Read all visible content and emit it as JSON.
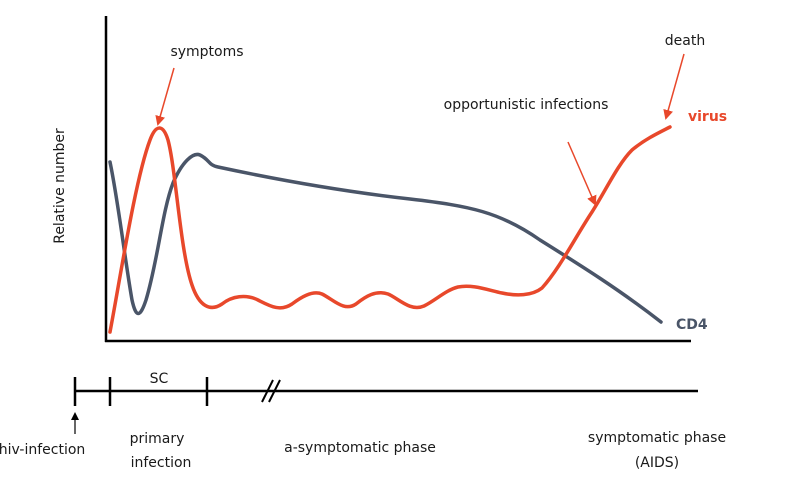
{
  "diagram": {
    "yaxis_label": "Relative number",
    "annotations": {
      "symptoms": "symptoms",
      "death": "death",
      "opportunistic": "opportunistic infections"
    },
    "series": {
      "virus": {
        "label": "virus",
        "color": "#e8482b"
      },
      "cd4": {
        "label": "CD4",
        "color": "#4a5568"
      }
    },
    "timeline": {
      "sc": "SC",
      "hiv_infection": "hiv-infection",
      "primary_line1": "primary",
      "primary_line2": "infection",
      "asymptomatic": "a-symptomatic phase",
      "symptomatic_line1": "symptomatic phase",
      "symptomatic_line2": "(AIDS)"
    },
    "colors": {
      "axis": "#000000",
      "arrow": "#e8482b"
    }
  }
}
